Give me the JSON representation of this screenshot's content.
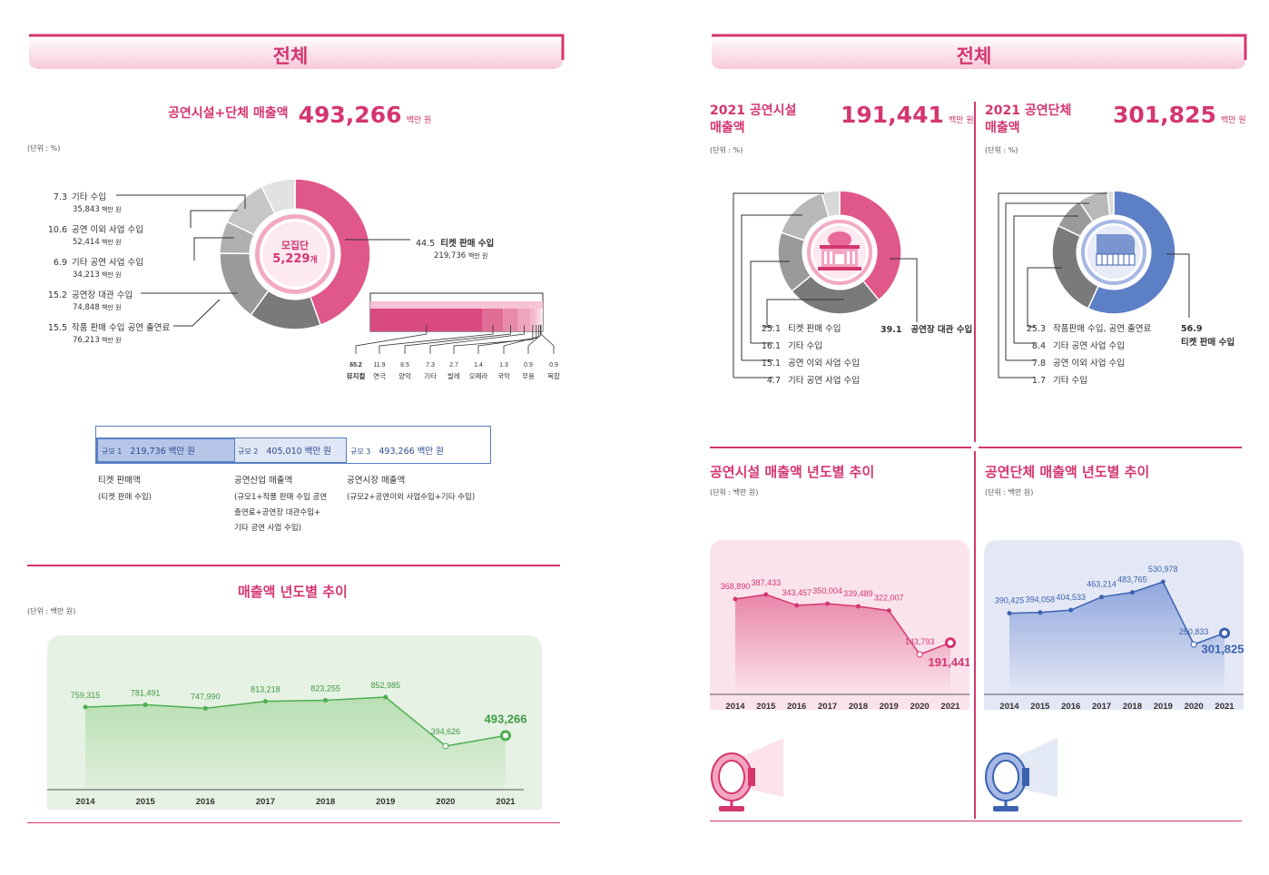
{
  "left": {
    "banner": "전체",
    "title": "공연시설+단체 매출액",
    "total": "493,266",
    "total_unit": "백만 원",
    "unit_note": "(단위 : %)",
    "donut_center": {
      "label": "모집단",
      "value": "5,229",
      "suffix": "개"
    },
    "ticket": {
      "pct": "44.5",
      "label": "티켓 판매 수입",
      "amount": "219,736",
      "unit": "백만 원"
    },
    "legend": [
      {
        "pct": "7.3",
        "label": "기타 수입",
        "amount": "35,843",
        "unit": "백만 원"
      },
      {
        "pct": "10.6",
        "label": "공연 이외 사업 수입",
        "amount": "52,414",
        "unit": "백만 원"
      },
      {
        "pct": "6.9",
        "label": "기타 공연 사업 수입",
        "amount": "34,213",
        "unit": "백만 원"
      },
      {
        "pct": "15.2",
        "label": "공연장 대관 수입",
        "amount": "74,848",
        "unit": "백만 원"
      },
      {
        "pct": "15.5",
        "label": "작품 판매 수입 공연 출연료",
        "amount": "76,213",
        "unit": "백만 원"
      }
    ],
    "genres": [
      {
        "v": "65.2",
        "n": "뮤지컬"
      },
      {
        "v": "11.9",
        "n": "연극"
      },
      {
        "v": "8.5",
        "n": "양악"
      },
      {
        "v": "7.3",
        "n": "기타"
      },
      {
        "v": "2.7",
        "n": "발레"
      },
      {
        "v": "1.4",
        "n": "오페라"
      },
      {
        "v": "1.3",
        "n": "국악"
      },
      {
        "v": "0.9",
        "n": "무용"
      },
      {
        "v": "0.9",
        "n": "복합"
      }
    ],
    "scales": [
      {
        "tag": "규모 1",
        "value": "219,736 백만 원",
        "name": "티켓 판매액",
        "desc": [
          "(티켓 판매 수입)"
        ]
      },
      {
        "tag": "규모 2",
        "value": "405,010 백만 원",
        "name": "공연산업 매출액",
        "desc": [
          "(규모1+작품 판매 수입 공연",
          "출연료+공연장 대관수입+",
          "기타 공연 사업 수입)"
        ]
      },
      {
        "tag": "규모 3",
        "value": "493,266 백만 원",
        "name": "공연시장 매출액",
        "desc": [
          "(규모2+공연이외 사업수입+기타 수입)"
        ]
      }
    ],
    "trend_title": "매출액 년도별 추이",
    "trend_unit": "(단위 : 백만 원)"
  },
  "right": {
    "banner": "전체",
    "facility": {
      "title_l1": "2021 공연시설",
      "title_l2": "매출액",
      "total": "191,441",
      "unit": "백만 원",
      "unit_note": "(단위 : %)",
      "highlight": {
        "pct": "39.1",
        "label": "공연장 대관 수입"
      },
      "legend": [
        {
          "pct": "25.1",
          "label": "티켓 판매 수입"
        },
        {
          "pct": "16.1",
          "label": "기타 수입"
        },
        {
          "pct": "15.1",
          "label": "공연 이외 사업 수입"
        },
        {
          "pct": "4.7",
          "label": "기타 공연 사업 수입"
        }
      ],
      "trend_title": "공연시설 매출액 년도별 추이",
      "trend_unit": "(단위 : 백만 원)"
    },
    "group": {
      "title_l1": "2021 공연단체",
      "title_l2": "매출액",
      "total": "301,825",
      "unit": "백만 원",
      "unit_note": "(단위 : %)",
      "highlight": {
        "pct": "56.9",
        "label": "티켓 판매 수입"
      },
      "legend": [
        {
          "pct": "25.3",
          "label": "작품판매 수입, 공연 출연료"
        },
        {
          "pct": "8.4",
          "label": "기타 공연 사업 수입"
        },
        {
          "pct": "7.8",
          "label": "공연 이외 사업 수입"
        },
        {
          "pct": "1.7",
          "label": "기타 수입"
        }
      ],
      "trend_title": "공연단체 매출액 년도별 추이",
      "trend_unit": "(단위 : 백만 원)"
    }
  },
  "colors": {
    "pink": "#d4366e",
    "blue": "#3a62b0",
    "green": "#4caf50"
  },
  "chart_data": [
    {
      "type": "pie",
      "title": "공연시설+단체 매출액",
      "categories": [
        "티켓 판매 수입",
        "작품 판매 수입 공연 출연료",
        "공연장 대관 수입",
        "기타 공연 사업 수입",
        "공연 이외 사업 수입",
        "기타 수입"
      ],
      "values": [
        44.5,
        15.5,
        15.2,
        6.9,
        10.6,
        7.3
      ]
    },
    {
      "type": "bar",
      "categories": [
        "뮤지컬",
        "연극",
        "양악",
        "기타",
        "발레",
        "오페라",
        "국악",
        "무용",
        "복합"
      ],
      "values": [
        65.2,
        11.9,
        8.5,
        7.3,
        2.7,
        1.4,
        1.3,
        0.9,
        0.9
      ]
    },
    {
      "type": "area",
      "title": "매출액 년도별 추이",
      "x": [
        "2014",
        "2015",
        "2016",
        "2017",
        "2018",
        "2019",
        "2020",
        "2021"
      ],
      "values": [
        759315,
        781491,
        747990,
        813218,
        823255,
        852985,
        394626,
        493266
      ],
      "labels": [
        "759,315",
        "781,491",
        "747,990",
        "813,218",
        "823,255",
        "852,985",
        "394,626",
        "493,266"
      ]
    },
    {
      "type": "pie",
      "title": "2021 공연시설 매출액",
      "categories": [
        "공연장 대관 수입",
        "티켓 판매 수입",
        "기타 수입",
        "공연 이외 사업 수입",
        "기타 공연 사업 수입"
      ],
      "values": [
        39.1,
        25.1,
        16.1,
        15.1,
        4.7
      ]
    },
    {
      "type": "pie",
      "title": "2021 공연단체 매출액",
      "categories": [
        "티켓 판매 수입",
        "작품판매 수입, 공연 출연료",
        "기타 공연 사업 수입",
        "공연 이외 사업 수입",
        "기타 수입"
      ],
      "values": [
        56.9,
        25.3,
        8.4,
        7.8,
        1.7
      ]
    },
    {
      "type": "area",
      "title": "공연시설 매출액 년도별 추이",
      "x": [
        "2014",
        "2015",
        "2016",
        "2017",
        "2018",
        "2019",
        "2020",
        "2021"
      ],
      "values": [
        368890,
        387433,
        343457,
        350004,
        339489,
        322007,
        143793,
        191441
      ],
      "labels": [
        "368,890",
        "387,433",
        "343,457",
        "350,004",
        "339,489",
        "322,007",
        "143,793",
        "191,441"
      ]
    },
    {
      "type": "area",
      "title": "공연단체 매출액 년도별 추이",
      "x": [
        "2014",
        "2015",
        "2016",
        "2017",
        "2018",
        "2019",
        "2020",
        "2021"
      ],
      "values": [
        390425,
        394058,
        404533,
        463214,
        483765,
        530978,
        250833,
        301825
      ],
      "labels": [
        "390,425",
        "394,058",
        "404,533",
        "463,214",
        "483,765",
        "530,978",
        "250,833",
        "301,825"
      ]
    }
  ]
}
